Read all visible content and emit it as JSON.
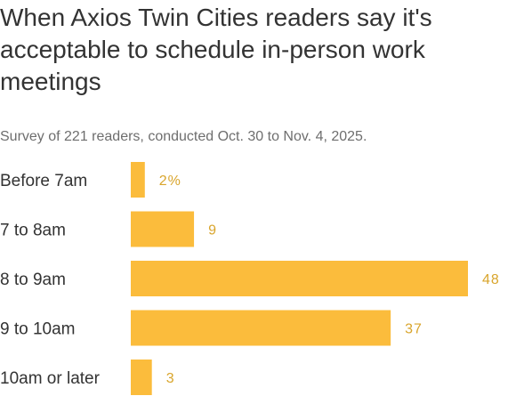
{
  "chart_data": {
    "type": "bar",
    "orientation": "horizontal",
    "title": "When Axios Twin Cities readers say it's acceptable to schedule in-person work meetings",
    "subtitle": "Survey of 221 readers, conducted Oct. 30 to Nov. 4, 2025.",
    "categories": [
      "Before 7am",
      "7 to 8am",
      "8 to 9am",
      "9 to 10am",
      "10am or later"
    ],
    "values": [
      2,
      9,
      48,
      37,
      3
    ],
    "value_labels": [
      "2%",
      "9",
      "48",
      "37",
      "3"
    ],
    "unit": "%",
    "xlim": [
      0,
      48
    ],
    "grid": false,
    "legend": "none",
    "bar_color": "#fbbc3c",
    "label_color": "#d9a52c"
  }
}
